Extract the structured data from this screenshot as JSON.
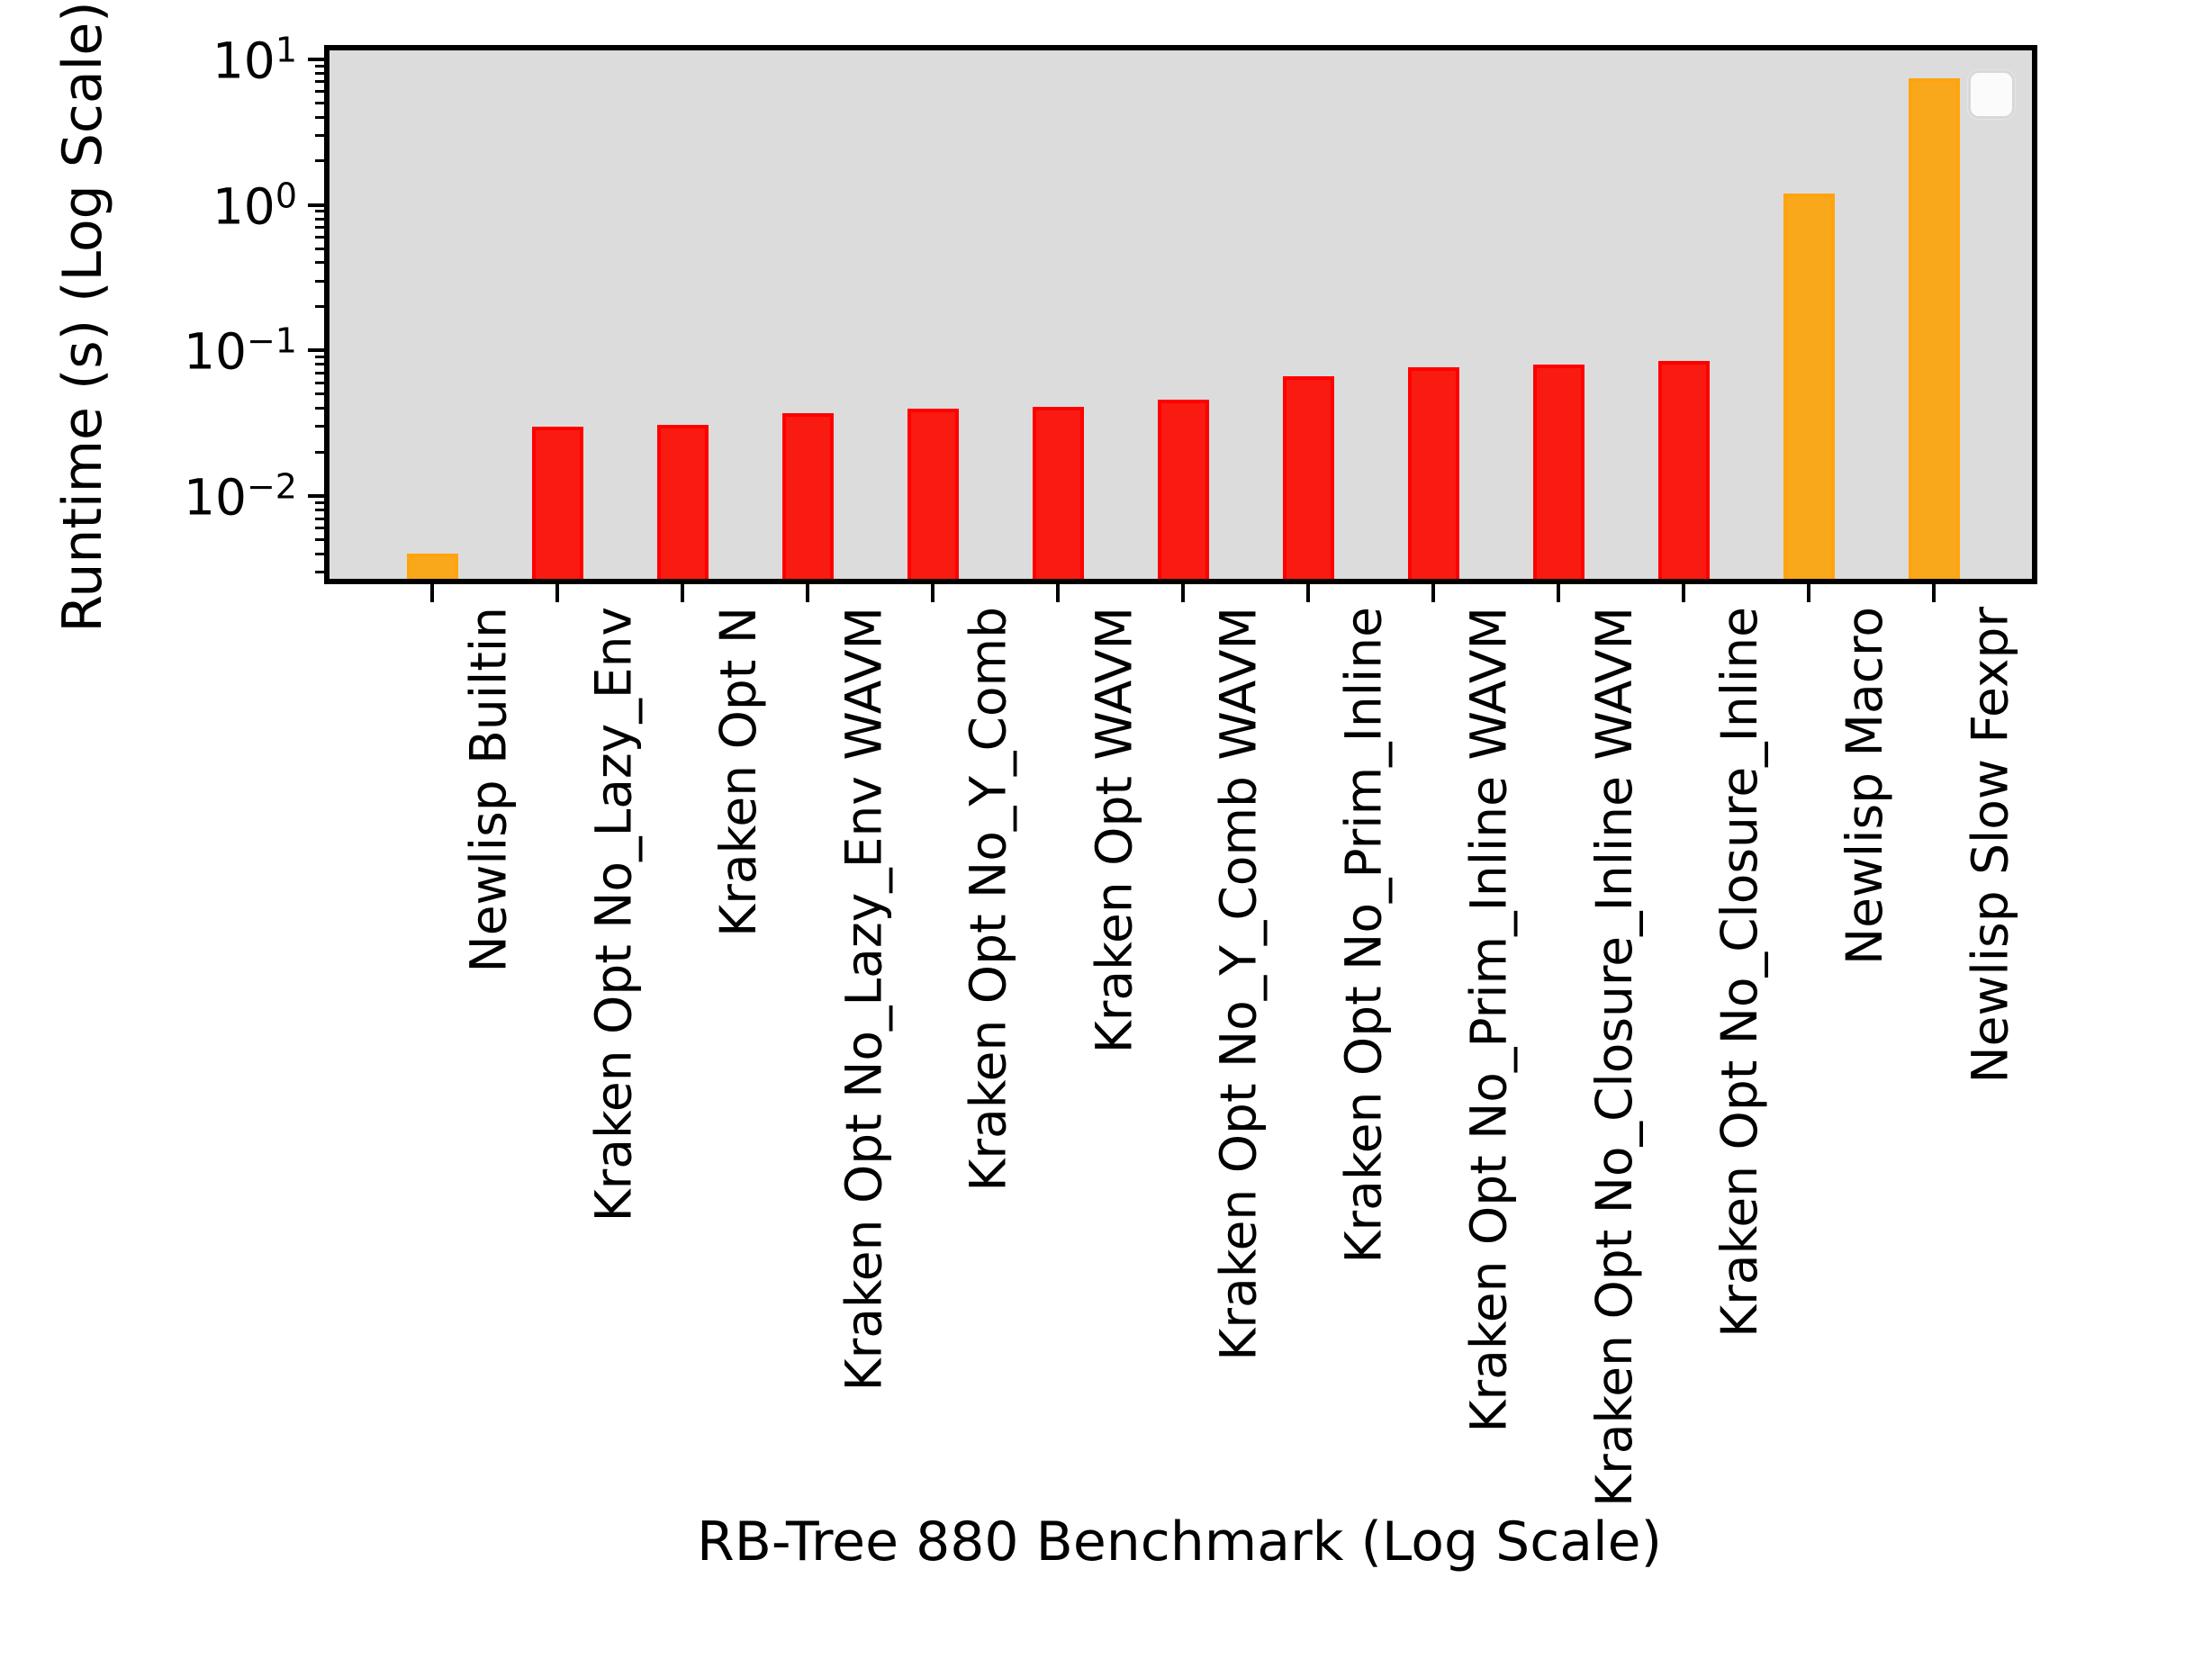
{
  "figure": {
    "background": "#ffffff",
    "plot_background": "#dcdcdc",
    "spine_color": "#000000",
    "colors": {
      "kraken_fill": "#f91a11",
      "kraken_edge": "#ff0000",
      "newlisp_fill": "#f9a71b",
      "newlisp_edge": "#ffa40e"
    },
    "legend": {
      "visible": true,
      "entries": [],
      "position": "upper-right",
      "background": "#fbfbfb",
      "border_color": "#d8d8d8"
    }
  },
  "chart_data": {
    "type": "bar",
    "title": "",
    "xlabel": "RB-Tree 880 Benchmark (Log Scale)",
    "ylabel": "Runtime (s) (Log Scale)",
    "yscale": "log",
    "ylim": [
      0.0027,
      11.5
    ],
    "ytick_exponents": [
      1,
      0,
      -1,
      -2
    ],
    "grid": false,
    "legend_position": "upper-right",
    "categories": [
      "Newlisp Builtin",
      "Kraken Opt No_Lazy_Env",
      "Kraken Opt N",
      "Kraken Opt No_Lazy_Env WAVM",
      "Kraken Opt No_Y_Comb",
      "Kraken Opt WAVM",
      "Kraken Opt No_Y_Comb WAVM",
      "Kraken Opt No_Prim_Inline",
      "Kraken Opt No_Prim_Inline WAVM",
      "Kraken Opt No_Closure_Inline WAVM",
      "Kraken Opt No_Closure_Inline",
      "Newlisp Macro",
      "Newlisp Slow Fexpr"
    ],
    "values": [
      0.004,
      0.03,
      0.031,
      0.037,
      0.04,
      0.041,
      0.046,
      0.066,
      0.077,
      0.08,
      0.085,
      1.2,
      7.4
    ],
    "groups": [
      "newlisp",
      "kraken",
      "kraken",
      "kraken",
      "kraken",
      "kraken",
      "kraken",
      "kraken",
      "kraken",
      "kraken",
      "kraken",
      "newlisp",
      "newlisp"
    ]
  }
}
